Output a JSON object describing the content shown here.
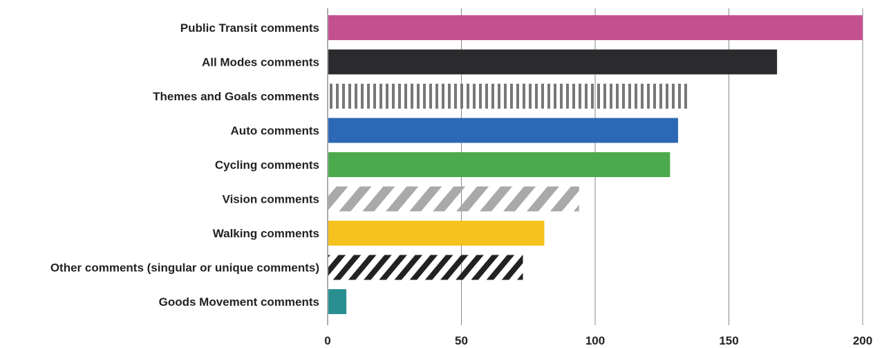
{
  "chart_data": {
    "type": "bar",
    "orientation": "horizontal",
    "title": "",
    "xlabel": "",
    "ylabel": "",
    "categories": [
      "Public Transit comments",
      "All Modes comments",
      "Themes and Goals comments",
      "Auto comments",
      "Cycling comments",
      "Vision comments",
      "Walking comments",
      "Other comments (singular or unique comments)",
      "Goods Movement comments"
    ],
    "values": [
      200,
      168,
      135,
      131,
      128,
      94,
      81,
      73,
      7
    ],
    "fills": [
      {
        "color": "#c5508f",
        "pattern": "solid"
      },
      {
        "color": "#2b2a2c",
        "pattern": "solid"
      },
      {
        "color": "#777777",
        "pattern": "vertical-stripes"
      },
      {
        "color": "#2d68b6",
        "pattern": "solid"
      },
      {
        "color": "#4caa4e",
        "pattern": "solid"
      },
      {
        "color": "#a9a9a9",
        "pattern": "diagonal-stripes"
      },
      {
        "color": "#f6c21e",
        "pattern": "solid"
      },
      {
        "color": "#222222",
        "pattern": "diagonal-stripes"
      },
      {
        "color": "#2a8f90",
        "pattern": "solid"
      }
    ],
    "xlim": [
      0,
      200
    ],
    "xticks": [
      "0",
      "50",
      "100",
      "150",
      "200"
    ],
    "grid": true,
    "legend": "none"
  }
}
